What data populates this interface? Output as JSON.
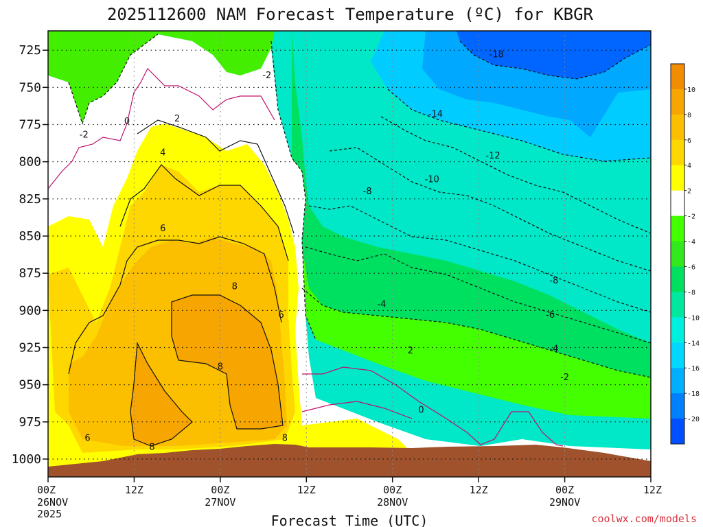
{
  "chart_data": {
    "type": "heatmap",
    "title": "2025112600 NAM Forecast Temperature (ºC) for KBGR",
    "xlabel": "Forecast Time (UTC)",
    "credit": "coolwx.com/models",
    "y_ticks": [
      725,
      750,
      775,
      800,
      825,
      850,
      875,
      900,
      925,
      950,
      975,
      1000
    ],
    "y_range": [
      712,
      1012
    ],
    "x_range_hours": [
      0,
      84
    ],
    "x_ticks": [
      {
        "h": 0,
        "time": "00Z",
        "date": "26NOV",
        "year": "2025"
      },
      {
        "h": 12,
        "time": "12Z",
        "date": "",
        "year": ""
      },
      {
        "h": 24,
        "time": "00Z",
        "date": "27NOV",
        "year": ""
      },
      {
        "h": 36,
        "time": "12Z",
        "date": "",
        "year": ""
      },
      {
        "h": 48,
        "time": "00Z",
        "date": "28NOV",
        "year": ""
      },
      {
        "h": 60,
        "time": "12Z",
        "date": "",
        "year": ""
      },
      {
        "h": 72,
        "time": "00Z",
        "date": "29NOV",
        "year": ""
      },
      {
        "h": 84,
        "time": "12Z",
        "date": "",
        "year": ""
      }
    ],
    "grid": true,
    "colorbar": {
      "labels": [
        "10",
        "8",
        "6",
        "4",
        "2",
        "-2",
        "-4",
        "-6",
        "-8",
        "-10",
        "-14",
        "-16",
        "-18",
        "-20"
      ],
      "colors": [
        "#f28c00",
        "#f7a500",
        "#fbbf00",
        "#ffd700",
        "#ffff00",
        "#ffffff",
        "#44ff00",
        "#33e81b",
        "#00e060",
        "#00e8a0",
        "#00f0e0",
        "#00d8ff",
        "#00b0ff",
        "#0080ff",
        "#0050ff"
      ]
    },
    "contour_labels": [
      {
        "text": "-18",
        "h": 62.5,
        "p": 728
      },
      {
        "text": "-14",
        "h": 54.0,
        "p": 768
      },
      {
        "text": "-12",
        "h": 62.0,
        "p": 796
      },
      {
        "text": "-10",
        "h": 53.5,
        "p": 812
      },
      {
        "text": "-8",
        "h": 44.5,
        "p": 820
      },
      {
        "text": "-8",
        "h": 70.5,
        "p": 880
      },
      {
        "text": "-6",
        "h": 70.0,
        "p": 903
      },
      {
        "text": "-4",
        "h": 46.5,
        "p": 896
      },
      {
        "text": "-4",
        "h": 70.5,
        "p": 926
      },
      {
        "text": "-2",
        "h": 30.5,
        "p": 742
      },
      {
        "text": "-2",
        "h": 5.0,
        "p": 782
      },
      {
        "text": "-2",
        "h": 72.0,
        "p": 945
      },
      {
        "text": "0",
        "h": 11.0,
        "p": 773
      },
      {
        "text": "0",
        "h": 52.0,
        "p": 967
      },
      {
        "text": "2",
        "h": 18.0,
        "p": 771
      },
      {
        "text": "2",
        "h": 50.5,
        "p": 927
      },
      {
        "text": "4",
        "h": 16.0,
        "p": 794
      },
      {
        "text": "6",
        "h": 16.0,
        "p": 845
      },
      {
        "text": "6",
        "h": 32.5,
        "p": 903
      },
      {
        "text": "6",
        "h": 5.5,
        "p": 986
      },
      {
        "text": "8",
        "h": 26.0,
        "p": 884
      },
      {
        "text": "8",
        "h": 24.0,
        "p": 938
      },
      {
        "text": "8",
        "h": 14.5,
        "p": 992
      },
      {
        "text": "8",
        "h": 33.0,
        "p": 986
      }
    ]
  }
}
